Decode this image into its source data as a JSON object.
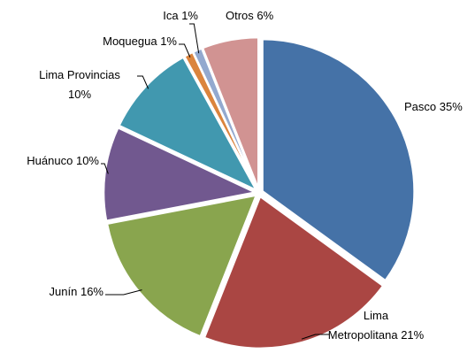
{
  "chart_data": {
    "type": "pie",
    "categories": [
      "Pasco",
      "Lima Metropolitana",
      "Junín",
      "Huánuco",
      "Lima Provincias",
      "Moquegua",
      "Ica",
      "Otros"
    ],
    "values": [
      35,
      21,
      16,
      10,
      10,
      1,
      1,
      6
    ],
    "value_labels": [
      "35%",
      "21%",
      "16%",
      "10%",
      "10%",
      "1%",
      "1%",
      "6%"
    ],
    "colors": [
      "#4572a7",
      "#aa4643",
      "#89a54e",
      "#71588f",
      "#4198af",
      "#db843d",
      "#93a9cf",
      "#d19392"
    ]
  }
}
